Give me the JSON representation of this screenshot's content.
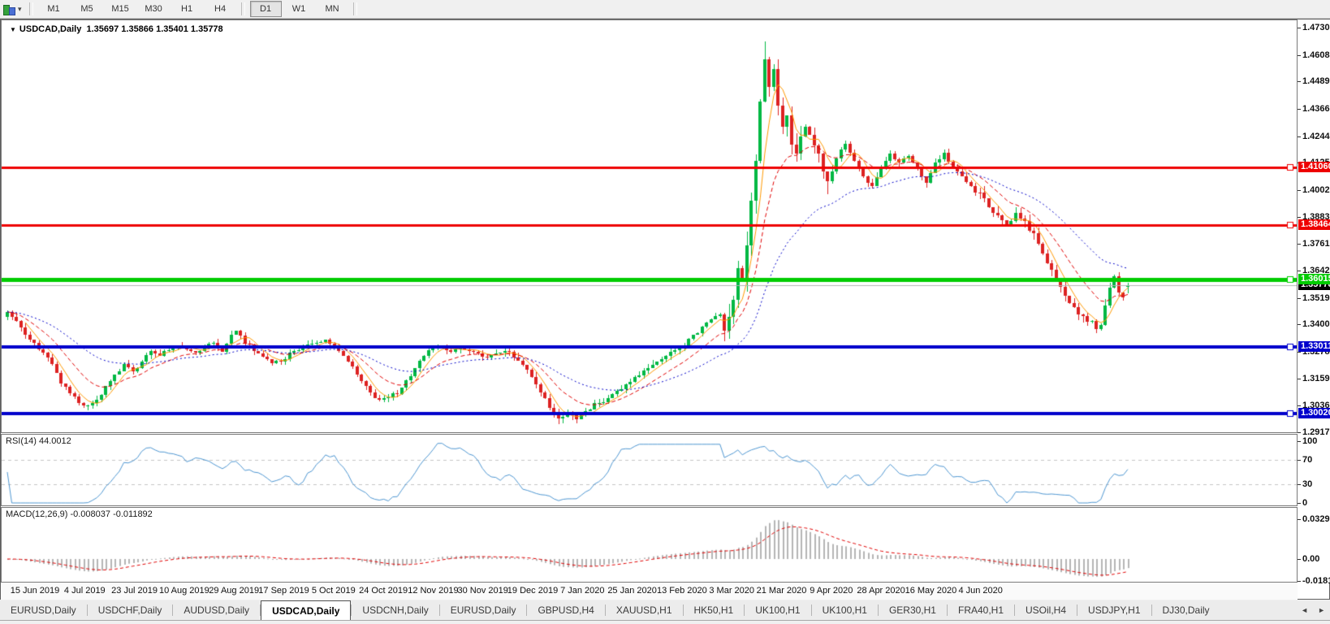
{
  "toolbar": {
    "timeframes": [
      "M1",
      "M5",
      "M15",
      "M30",
      "H1",
      "H4",
      "D1",
      "W1",
      "MN"
    ],
    "active_timeframe": "D1"
  },
  "chart": {
    "title_symbol": "USDCAD,Daily",
    "ohlc_text": "1.35697 1.35866 1.35401 1.35778",
    "dropdown_icon": "▼"
  },
  "chart_data": {
    "type": "candlestick",
    "symbol": "USDCAD",
    "timeframe": "Daily",
    "bull_color": "#00b843",
    "bear_color": "#dd2222",
    "candle_count": 251,
    "last_ohlc": {
      "open": 1.35697,
      "high": 1.35866,
      "low": 1.35401,
      "close": 1.35778
    },
    "spike_high": {
      "day": 169,
      "high": 1.4668
    },
    "key_lows": [
      {
        "day": 18,
        "low": 1.3016
      },
      {
        "day": 123,
        "low": 1.2958
      },
      {
        "day": 243,
        "low": 1.3375
      }
    ],
    "axis_range": {
      "top": 1.47305,
      "bottom": 1.29175
    },
    "price_axis_ticks": [
      "1.47305",
      "1.46080",
      "1.44890",
      "1.43665",
      "1.42440",
      "1.41250",
      "1.40025",
      "1.38835",
      "1.37610",
      "1.36420",
      "1.35195",
      "1.34005",
      "1.32780",
      "1.31590",
      "1.30365",
      "1.29175"
    ],
    "hlines": [
      {
        "price": 1.4106,
        "label": "1.41060",
        "color": "#ee0000",
        "width": 3
      },
      {
        "price": 1.38464,
        "label": "1.38464",
        "color": "#ee0000",
        "width": 3
      },
      {
        "price": 1.36015,
        "label": "1.36015",
        "color": "#00cc00",
        "width": 5
      },
      {
        "price": 1.33011,
        "label": "1.33011",
        "color": "#0000cc",
        "width": 4
      },
      {
        "price": 1.3002,
        "label": "1.30020",
        "color": "#0000cc",
        "width": 4
      }
    ],
    "current_price": {
      "value": 1.35778,
      "label": "1.35778",
      "line_color": "#b4b4b4",
      "badge_bg": "#000000"
    },
    "moving_averages": [
      {
        "period": 5,
        "method": "sma",
        "color": "#ff9900",
        "style": "solid"
      },
      {
        "period": 13,
        "method": "ema",
        "color": "#e00000",
        "style": "dash"
      },
      {
        "period": 34,
        "method": "ema",
        "color": "#0000c8",
        "style": "dot"
      }
    ],
    "close_anchors": [
      [
        0,
        1.345
      ],
      [
        2,
        1.341
      ],
      [
        4,
        1.336
      ],
      [
        6,
        1.3315
      ],
      [
        8,
        1.328
      ],
      [
        10,
        1.322
      ],
      [
        12,
        1.314
      ],
      [
        14,
        1.309
      ],
      [
        16,
        1.3055
      ],
      [
        18,
        1.3032
      ],
      [
        20,
        1.306
      ],
      [
        22,
        1.312
      ],
      [
        24,
        1.3175
      ],
      [
        26,
        1.322
      ],
      [
        28,
        1.3185
      ],
      [
        30,
        1.3235
      ],
      [
        32,
        1.328
      ],
      [
        34,
        1.326
      ],
      [
        36,
        1.329
      ],
      [
        38,
        1.331
      ],
      [
        40,
        1.3295
      ],
      [
        42,
        1.327
      ],
      [
        44,
        1.3305
      ],
      [
        46,
        1.332
      ],
      [
        48,
        1.3285
      ],
      [
        50,
        1.335
      ],
      [
        51,
        1.3378
      ],
      [
        53,
        1.332
      ],
      [
        55,
        1.3285
      ],
      [
        57,
        1.325
      ],
      [
        59,
        1.323
      ],
      [
        61,
        1.3235
      ],
      [
        63,
        1.327
      ],
      [
        65,
        1.329
      ],
      [
        67,
        1.3305
      ],
      [
        69,
        1.3325
      ],
      [
        71,
        1.3335
      ],
      [
        73,
        1.33
      ],
      [
        75,
        1.3255
      ],
      [
        77,
        1.321
      ],
      [
        79,
        1.315
      ],
      [
        81,
        1.3095
      ],
      [
        83,
        1.306
      ],
      [
        85,
        1.3075
      ],
      [
        87,
        1.3095
      ],
      [
        89,
        1.3145
      ],
      [
        91,
        1.3205
      ],
      [
        93,
        1.326
      ],
      [
        95,
        1.3295
      ],
      [
        97,
        1.3305
      ],
      [
        99,
        1.328
      ],
      [
        101,
        1.3295
      ],
      [
        103,
        1.3285
      ],
      [
        105,
        1.327
      ],
      [
        107,
        1.3255
      ],
      [
        109,
        1.327
      ],
      [
        111,
        1.3285
      ],
      [
        113,
        1.3255
      ],
      [
        115,
        1.3215
      ],
      [
        117,
        1.317
      ],
      [
        119,
        1.31
      ],
      [
        121,
        1.303
      ],
      [
        123,
        1.298
      ],
      [
        125,
        1.2992
      ],
      [
        127,
        1.2985
      ],
      [
        129,
        1.3005
      ],
      [
        131,
        1.304
      ],
      [
        133,
        1.306
      ],
      [
        135,
        1.3085
      ],
      [
        137,
        1.311
      ],
      [
        139,
        1.3145
      ],
      [
        141,
        1.3175
      ],
      [
        143,
        1.3205
      ],
      [
        145,
        1.3235
      ],
      [
        147,
        1.326
      ],
      [
        149,
        1.328
      ],
      [
        151,
        1.3315
      ],
      [
        153,
        1.335
      ],
      [
        155,
        1.339
      ],
      [
        157,
        1.3425
      ],
      [
        159,
        1.3445
      ],
      [
        160,
        1.339
      ],
      [
        161,
        1.343
      ],
      [
        162,
        1.353
      ],
      [
        163,
        1.365
      ],
      [
        164,
        1.36
      ],
      [
        165,
        1.378
      ],
      [
        166,
        1.395
      ],
      [
        167,
        1.415
      ],
      [
        168,
        1.442
      ],
      [
        169,
        1.458
      ],
      [
        170,
        1.445
      ],
      [
        171,
        1.456
      ],
      [
        172,
        1.439
      ],
      [
        173,
        1.429
      ],
      [
        174,
        1.436
      ],
      [
        175,
        1.423
      ],
      [
        176,
        1.415
      ],
      [
        177,
        1.422
      ],
      [
        178,
        1.43
      ],
      [
        179,
        1.424
      ],
      [
        181,
        1.415
      ],
      [
        183,
        1.406
      ],
      [
        185,
        1.415
      ],
      [
        187,
        1.421
      ],
      [
        189,
        1.414
      ],
      [
        191,
        1.406
      ],
      [
        193,
        1.402
      ],
      [
        195,
        1.41
      ],
      [
        197,
        1.417
      ],
      [
        199,
        1.412
      ],
      [
        201,
        1.416
      ],
      [
        203,
        1.41
      ],
      [
        205,
        1.404
      ],
      [
        207,
        1.412
      ],
      [
        209,
        1.417
      ],
      [
        211,
        1.41
      ],
      [
        213,
        1.406
      ],
      [
        215,
        1.402
      ],
      [
        217,
        1.398
      ],
      [
        219,
        1.393
      ],
      [
        221,
        1.389
      ],
      [
        223,
        1.385
      ],
      [
        225,
        1.39
      ],
      [
        227,
        1.386
      ],
      [
        229,
        1.38
      ],
      [
        231,
        1.372
      ],
      [
        233,
        1.365
      ],
      [
        235,
        1.358
      ],
      [
        237,
        1.35
      ],
      [
        239,
        1.345
      ],
      [
        241,
        1.342
      ],
      [
        243,
        1.339
      ],
      [
        244,
        1.34
      ],
      [
        245,
        1.348
      ],
      [
        246,
        1.356
      ],
      [
        247,
        1.361
      ],
      [
        248,
        1.3555
      ],
      [
        249,
        1.353
      ],
      [
        250,
        1.35778
      ]
    ],
    "rsi": {
      "label": "RSI(14) 44.0012",
      "period": 14,
      "last_value": 44.0012,
      "ticks": [
        "100",
        "70",
        "30",
        "0"
      ],
      "tick_values": [
        100,
        70,
        30,
        0
      ],
      "levels": [
        70,
        30
      ],
      "color": "#4e96d1",
      "level_color": "#c4c4c4"
    },
    "macd": {
      "label": "MACD(12,26,9) -0.008037 -0.011892",
      "fast": 12,
      "slow": 26,
      "signal_period": 9,
      "main_last": -0.008037,
      "signal_last": -0.011892,
      "ticks": [
        "0.032972",
        "0.00",
        "-0.01815"
      ],
      "tick_values": [
        0.032972,
        0,
        -0.01815
      ],
      "hist_color": "#b4b4b4",
      "signal_color": "#e00000"
    },
    "x_labels": [
      "15 Jun 2019",
      "4 Jul 2019",
      "23 Jul 2019",
      "10 Aug 2019",
      "29 Aug 2019",
      "17 Sep 2019",
      "5 Oct 2019",
      "24 Oct 2019",
      "12 Nov 2019",
      "30 Nov 2019",
      "19 Dec 2019",
      "7 Jan 2020",
      "25 Jan 2020",
      "13 Feb 2020",
      "3 Mar 2020",
      "21 Mar 2020",
      "9 Apr 2020",
      "28 Apr 2020",
      "16 May 2020",
      "4 Jun 2020"
    ]
  },
  "tabs": {
    "items": [
      "EURUSD,Daily",
      "USDCHF,Daily",
      "AUDUSD,Daily",
      "USDCAD,Daily",
      "USDCNH,Daily",
      "EURUSD,Daily",
      "GBPUSD,H4",
      "XAUUSD,H1",
      "HK50,H1",
      "UK100,H1",
      "UK100,H1",
      "GER30,H1",
      "FRA40,H1",
      "USOil,H4",
      "USDJPY,H1",
      "DJ30,Daily"
    ],
    "active_index": 3,
    "scroll_left": "◄",
    "scroll_right": "►"
  }
}
